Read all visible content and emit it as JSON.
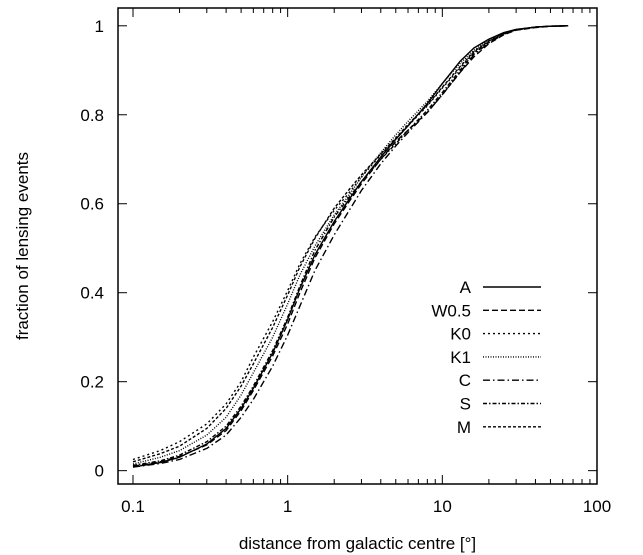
{
  "chart_data": {
    "type": "line",
    "title": "",
    "xlabel": "distance from galactic centre [°]",
    "ylabel": "fraction of lensing events",
    "xscale": "log",
    "xlim": [
      0.08,
      100
    ],
    "ylim": [
      -0.03,
      1.04
    ],
    "xticks": [
      0.1,
      1,
      10,
      100
    ],
    "xtick_labels": [
      "0.1",
      "1",
      "10",
      "100"
    ],
    "yticks": [
      0,
      0.2,
      0.4,
      0.6,
      0.8,
      1
    ],
    "ytick_labels": [
      "0",
      "0.2",
      "0.4",
      "0.6",
      "0.8",
      "1"
    ],
    "grid": false,
    "legend_position": "lower-right",
    "x": [
      0.1,
      0.15,
      0.2,
      0.3,
      0.4,
      0.5,
      0.6,
      0.8,
      1.0,
      1.2,
      1.5,
      2.0,
      2.5,
      3.0,
      4.0,
      5.0,
      6.0,
      8.0,
      10.0,
      13.0,
      16.0,
      20.0,
      25.0,
      30.0,
      40.0,
      50.0,
      65.0
    ],
    "series": [
      {
        "name": "A",
        "dash": "",
        "values": [
          0.008,
          0.018,
          0.03,
          0.06,
          0.095,
          0.14,
          0.185,
          0.265,
          0.34,
          0.41,
          0.485,
          0.56,
          0.61,
          0.65,
          0.705,
          0.745,
          0.775,
          0.825,
          0.87,
          0.92,
          0.95,
          0.97,
          0.985,
          0.992,
          0.997,
          0.999,
          1.0
        ]
      },
      {
        "name": "W0.5",
        "dash": "6,3",
        "values": [
          0.01,
          0.02,
          0.032,
          0.058,
          0.09,
          0.135,
          0.18,
          0.258,
          0.33,
          0.4,
          0.478,
          0.555,
          0.605,
          0.645,
          0.7,
          0.74,
          0.765,
          0.805,
          0.845,
          0.895,
          0.93,
          0.96,
          0.98,
          0.99,
          0.996,
          0.999,
          1.0
        ]
      },
      {
        "name": "K0",
        "dash": "2,3",
        "values": [
          0.025,
          0.045,
          0.065,
          0.105,
          0.15,
          0.2,
          0.255,
          0.335,
          0.405,
          0.465,
          0.525,
          0.585,
          0.625,
          0.66,
          0.71,
          0.745,
          0.775,
          0.82,
          0.86,
          0.905,
          0.94,
          0.965,
          0.982,
          0.991,
          0.997,
          0.999,
          1.0
        ]
      },
      {
        "name": "K1",
        "dash": "1,1.5",
        "values": [
          0.015,
          0.03,
          0.045,
          0.08,
          0.12,
          0.17,
          0.22,
          0.3,
          0.375,
          0.44,
          0.505,
          0.575,
          0.62,
          0.66,
          0.715,
          0.755,
          0.785,
          0.83,
          0.87,
          0.915,
          0.945,
          0.968,
          0.984,
          0.992,
          0.997,
          0.999,
          1.0
        ]
      },
      {
        "name": "C",
        "dash": "7,3,1.5,3",
        "values": [
          0.008,
          0.016,
          0.025,
          0.05,
          0.08,
          0.12,
          0.16,
          0.235,
          0.305,
          0.37,
          0.45,
          0.53,
          0.585,
          0.63,
          0.69,
          0.73,
          0.76,
          0.805,
          0.845,
          0.895,
          0.935,
          0.962,
          0.981,
          0.991,
          0.997,
          0.999,
          1.0
        ]
      },
      {
        "name": "S",
        "dash": "4,2,1.5,2",
        "values": [
          0.012,
          0.022,
          0.035,
          0.065,
          0.1,
          0.145,
          0.19,
          0.27,
          0.345,
          0.415,
          0.495,
          0.57,
          0.615,
          0.65,
          0.7,
          0.735,
          0.765,
          0.81,
          0.85,
          0.9,
          0.938,
          0.963,
          0.982,
          0.991,
          0.997,
          0.999,
          1.0
        ]
      },
      {
        "name": "M",
        "dash": "3,2",
        "values": [
          0.02,
          0.038,
          0.055,
          0.095,
          0.14,
          0.19,
          0.24,
          0.322,
          0.395,
          0.458,
          0.522,
          0.59,
          0.632,
          0.665,
          0.712,
          0.748,
          0.778,
          0.822,
          0.862,
          0.908,
          0.942,
          0.966,
          0.983,
          0.991,
          0.997,
          0.999,
          1.0
        ]
      }
    ]
  }
}
